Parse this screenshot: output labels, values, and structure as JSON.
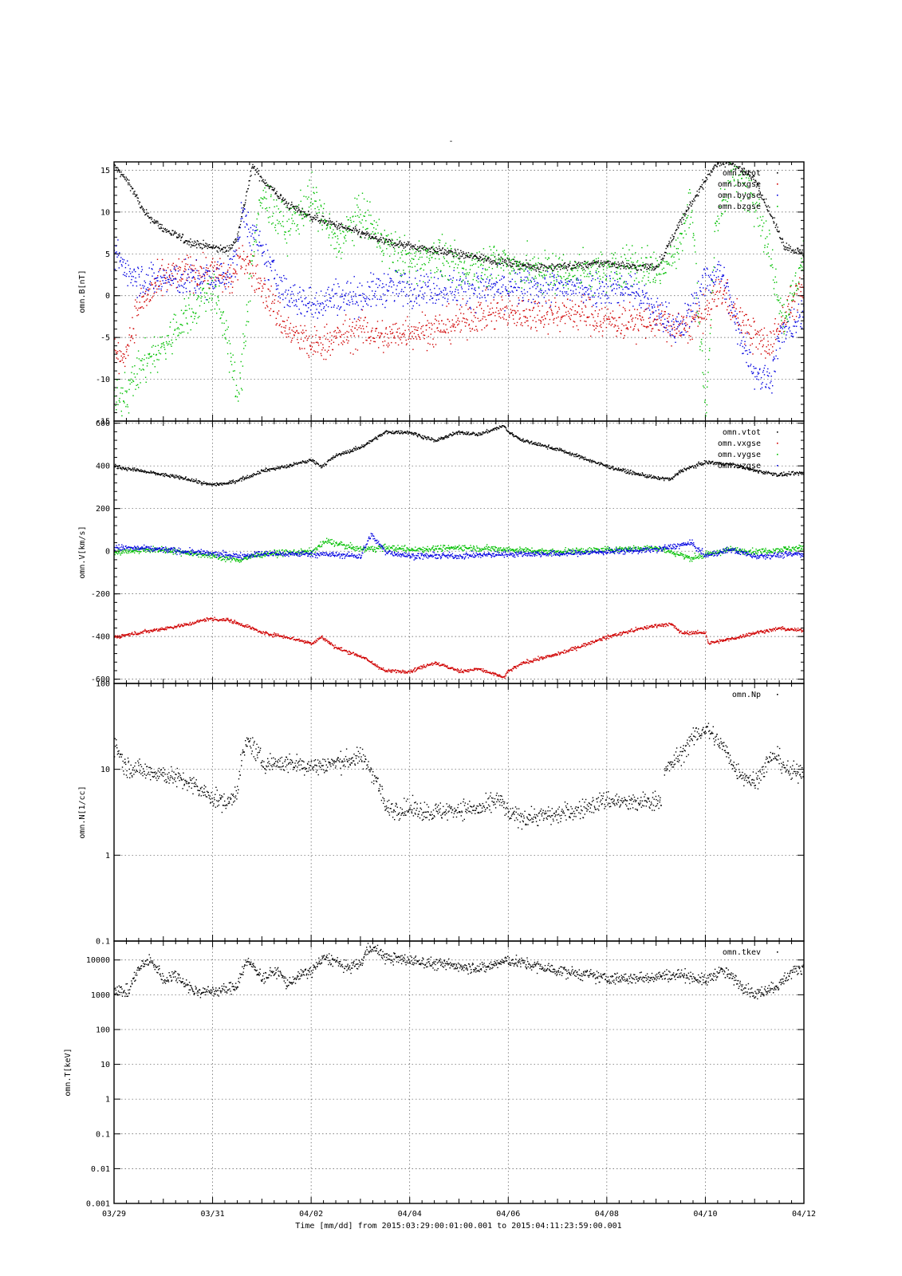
{
  "page": {
    "title": "-"
  },
  "footer": {
    "xlabel": "Time [mm/dd]  from 2015:03:29:00:01:00.001  to  2015:04:11:23:59:00.001"
  },
  "colors": {
    "black": "#000000",
    "red": "#d00000",
    "green": "#00c000",
    "blue": "#0000e0"
  },
  "chart_data": [
    {
      "type": "scatter",
      "ylabel": "omn.B[nT]",
      "yscale": "linear",
      "ylim": [
        -15,
        16
      ],
      "ytick_labels": [
        "15",
        "10",
        "5",
        "0",
        "-5",
        "-10",
        "-15"
      ],
      "yticks": [
        15,
        10,
        5,
        0,
        -5,
        -10,
        -15
      ],
      "grid": true,
      "legend_position": "top-right",
      "x_day_range": [
        0,
        14
      ],
      "x_tick_labels": [
        "03/29",
        "03/31",
        "04/02",
        "04/04",
        "04/06",
        "04/08",
        "04/10",
        "04/12"
      ],
      "x_tick_days": [
        0,
        2,
        4,
        6,
        8,
        10,
        12,
        14
      ],
      "series": [
        {
          "name": "omn.btot",
          "color": "#000000",
          "jitter": 0.35,
          "x": [
            0,
            0.3,
            0.6,
            1.0,
            1.5,
            2.0,
            2.3,
            2.45,
            2.6,
            2.8,
            3.0,
            3.5,
            4.0,
            4.5,
            5.0,
            5.5,
            6.0,
            6.5,
            7.0,
            7.5,
            8.0,
            8.5,
            9.0,
            9.5,
            10.0,
            10.5,
            11.0,
            11.2,
            11.4,
            11.6,
            11.8,
            12.0,
            12.2,
            12.5,
            13.0,
            13.3,
            13.6,
            14.0
          ],
          "y": [
            15.5,
            13.5,
            10,
            8,
            6.5,
            5.8,
            5.5,
            6.5,
            10,
            15.5,
            14,
            11,
            9.5,
            8.5,
            7.5,
            6.5,
            6,
            5.5,
            5,
            4.5,
            4,
            3.5,
            3.5,
            3.7,
            4,
            3.5,
            3.5,
            5.5,
            8,
            10,
            12,
            14,
            15.8,
            16,
            14,
            10,
            6,
            5
          ]
        },
        {
          "name": "omn.bxgse",
          "color": "#d00000",
          "jitter": 1.5,
          "x": [
            0,
            0.15,
            0.5,
            1.0,
            1.5,
            2.0,
            2.4,
            2.6,
            3.0,
            3.5,
            4.0,
            4.5,
            5.0,
            5.5,
            6.0,
            6.5,
            7.0,
            7.5,
            8.0,
            8.5,
            9.0,
            9.5,
            10.0,
            10.5,
            11.0,
            11.5,
            12.0,
            12.3,
            12.6,
            13.0,
            13.3,
            13.6,
            14.0
          ],
          "y": [
            -6,
            -8,
            -1,
            2,
            3,
            3,
            2,
            5,
            1,
            -4,
            -6,
            -5,
            -4,
            -5,
            -4,
            -4,
            -3,
            -2,
            -2,
            -2,
            -2,
            -2,
            -3,
            -3,
            -3,
            -4,
            -2,
            1,
            -2,
            -5,
            -6,
            -2,
            1
          ]
        },
        {
          "name": "omn.bygse",
          "color": "#0000e0",
          "jitter": 1.5,
          "x": [
            0,
            0.3,
            0.6,
            1.0,
            1.5,
            2.0,
            2.4,
            2.6,
            3.0,
            3.5,
            4.0,
            4.5,
            5.0,
            5.5,
            6.0,
            6.5,
            7.0,
            7.5,
            8.0,
            8.5,
            9.0,
            9.5,
            10.0,
            10.5,
            11.0,
            11.5,
            12.0,
            12.3,
            12.6,
            13.0,
            13.3,
            13.5,
            14.0
          ],
          "y": [
            5,
            3,
            2,
            2,
            2,
            2,
            3,
            10,
            5,
            0,
            -1,
            0,
            0,
            1,
            1,
            1,
            1,
            1,
            1,
            1,
            1,
            1,
            1,
            1,
            -2,
            -4,
            2,
            3,
            -3,
            -9,
            -10,
            -5,
            -2
          ]
        },
        {
          "name": "omn.bzgse",
          "color": "#00c000",
          "jitter": 1.8,
          "x": [
            0,
            0.3,
            0.6,
            1.0,
            1.5,
            2.0,
            2.3,
            2.5,
            2.6,
            2.8,
            3.0,
            3.5,
            4.0,
            4.5,
            5.0,
            5.5,
            6.0,
            6.5,
            7.0,
            7.5,
            8.0,
            8.5,
            9.0,
            9.5,
            10.0,
            10.5,
            11.0,
            11.4,
            11.7,
            12.0,
            12.2,
            12.5,
            13.0,
            13.3,
            13.6,
            14.0
          ],
          "y": [
            -13,
            -11,
            -8,
            -6,
            -2,
            1,
            -5,
            -13,
            -8,
            5,
            12,
            8,
            12,
            6,
            10,
            6,
            4,
            5,
            3,
            4,
            4,
            3,
            3,
            3,
            3,
            4,
            3,
            5,
            11,
            -14,
            8,
            15,
            12,
            5,
            -3,
            5
          ]
        }
      ]
    },
    {
      "type": "scatter",
      "ylabel": "omn.V[km/s]",
      "yscale": "linear",
      "ylim": [
        -620,
        610
      ],
      "ytick_labels": [
        "600",
        "400",
        "200",
        "0",
        "-200",
        "-400",
        "-600"
      ],
      "yticks": [
        600,
        400,
        200,
        0,
        -200,
        -400,
        -600
      ],
      "grid": true,
      "legend_position": "top-right",
      "x_day_range": [
        0,
        14
      ],
      "x_tick_labels": [
        "03/29",
        "03/31",
        "04/02",
        "04/04",
        "04/06",
        "04/08",
        "04/10",
        "04/12"
      ],
      "x_tick_days": [
        0,
        2,
        4,
        6,
        8,
        10,
        12,
        14
      ],
      "series": [
        {
          "name": "omn.vtot",
          "color": "#000000",
          "jitter": 6,
          "x": [
            0,
            0.5,
            1.0,
            1.5,
            1.9,
            2.3,
            2.7,
            3.0,
            3.5,
            4.0,
            4.2,
            4.5,
            5.0,
            5.5,
            6.0,
            6.5,
            7.0,
            7.4,
            7.9,
            8.0,
            8.3,
            9.0,
            9.5,
            10.0,
            10.5,
            11.0,
            11.3,
            11.5,
            12.0,
            12.5,
            13.0,
            13.5,
            14.0
          ],
          "y": [
            400,
            380,
            360,
            340,
            315,
            320,
            350,
            380,
            400,
            430,
            400,
            450,
            490,
            560,
            560,
            520,
            560,
            550,
            590,
            560,
            520,
            480,
            440,
            400,
            370,
            345,
            340,
            380,
            420,
            410,
            380,
            360,
            370
          ]
        },
        {
          "name": "omn.vxgse",
          "color": "#d00000",
          "jitter": 6,
          "x": [
            0,
            0.5,
            1.0,
            1.5,
            1.9,
            2.3,
            2.7,
            3.0,
            3.5,
            4.0,
            4.2,
            4.5,
            5.0,
            5.5,
            6.0,
            6.5,
            7.0,
            7.4,
            7.9,
            8.0,
            8.3,
            9.0,
            9.5,
            10.0,
            10.5,
            11.0,
            11.3,
            11.5,
            12.0,
            12.05,
            12.5,
            13.0,
            13.5,
            14.0
          ],
          "y": [
            -400,
            -380,
            -360,
            -340,
            -315,
            -320,
            -350,
            -380,
            -400,
            -430,
            -400,
            -450,
            -490,
            -560,
            -560,
            -520,
            -560,
            -550,
            -590,
            -560,
            -520,
            -480,
            -440,
            -400,
            -370,
            -345,
            -340,
            -380,
            -380,
            -430,
            -410,
            -380,
            -360,
            -370
          ]
        },
        {
          "name": "omn.vygse",
          "color": "#00c000",
          "jitter": 10,
          "x": [
            0,
            1.0,
            2.0,
            2.5,
            3.0,
            4.0,
            4.3,
            5.0,
            5.5,
            6.0,
            7.0,
            8.0,
            9.0,
            10.0,
            11.0,
            11.7,
            12.5,
            13.0,
            14.0
          ],
          "y": [
            0,
            10,
            -20,
            -40,
            -10,
            0,
            50,
            10,
            20,
            10,
            20,
            10,
            0,
            10,
            20,
            -30,
            10,
            0,
            20
          ]
        },
        {
          "name": "omn.vzgse",
          "color": "#0000e0",
          "jitter": 10,
          "x": [
            0,
            1.0,
            2.0,
            2.5,
            3.0,
            4.0,
            5.0,
            5.2,
            5.5,
            6.0,
            7.0,
            8.0,
            9.0,
            10.0,
            11.0,
            11.7,
            12.0,
            12.5,
            13.0,
            14.0
          ],
          "y": [
            20,
            10,
            -10,
            -20,
            -10,
            -10,
            -20,
            80,
            0,
            -20,
            -20,
            -10,
            -10,
            0,
            10,
            40,
            -20,
            10,
            -20,
            -10
          ]
        }
      ]
    },
    {
      "type": "scatter",
      "ylabel": "omn.N[1/cc]",
      "yscale": "log",
      "ylim": [
        0.1,
        100
      ],
      "ytick_labels": [
        "100",
        "10",
        "1",
        "0.1"
      ],
      "yticks": [
        100,
        10,
        1,
        0.1
      ],
      "grid": true,
      "legend_position": "top-right",
      "x_day_range": [
        0,
        14
      ],
      "x_tick_labels": [
        "03/29",
        "03/31",
        "04/02",
        "04/04",
        "04/06",
        "04/08",
        "04/10",
        "04/12"
      ],
      "x_tick_days": [
        0,
        2,
        4,
        6,
        8,
        10,
        12,
        14
      ],
      "series": [
        {
          "name": "omn.Np",
          "color": "#000000",
          "jitter": 0.08,
          "gap_after": 11.1,
          "gap_until": 11.15,
          "x": [
            0,
            0.2,
            0.5,
            1.0,
            1.5,
            1.9,
            2.3,
            2.5,
            2.7,
            3.0,
            3.5,
            4.0,
            4.5,
            5.0,
            5.3,
            5.5,
            6.0,
            6.5,
            7.0,
            7.5,
            7.8,
            8.0,
            8.3,
            9.0,
            9.5,
            10.0,
            10.5,
            11.1,
            11.15,
            11.5,
            11.8,
            12.0,
            12.3,
            12.6,
            13.0,
            13.4,
            13.7,
            14.0
          ],
          "y": [
            20,
            11,
            10,
            9,
            7,
            5,
            4,
            6,
            22,
            12,
            12,
            11,
            12,
            14,
            8,
            3.5,
            3.5,
            3.2,
            3.5,
            3.5,
            4.5,
            3,
            2.8,
            3,
            3.5,
            4.5,
            4,
            4.5,
            9,
            15,
            25,
            30,
            20,
            10,
            7,
            15,
            9,
            10
          ]
        }
      ]
    },
    {
      "type": "scatter",
      "ylabel": "omn.T[keV]",
      "yscale": "log",
      "ylim": [
        0.001,
        35000
      ],
      "ytick_labels": [
        "10000",
        "1000",
        "100",
        "10",
        "1",
        "0.1",
        "0.01",
        "0.001"
      ],
      "yticks": [
        10000,
        1000,
        100,
        10,
        1,
        0.1,
        0.01,
        0.001
      ],
      "grid": true,
      "legend_position": "top-right",
      "x_day_range": [
        0,
        14
      ],
      "x_tick_labels": [
        "03/29",
        "03/31",
        "04/02",
        "04/04",
        "04/06",
        "04/08",
        "04/10",
        "04/12"
      ],
      "x_tick_days": [
        0,
        2,
        4,
        6,
        8,
        10,
        12,
        14
      ],
      "series": [
        {
          "name": "omn.tkev",
          "color": "#000000",
          "jitter": 0.12,
          "x": [
            0,
            0.3,
            0.7,
            1.0,
            1.2,
            1.4,
            1.6,
            2.0,
            2.3,
            2.5,
            2.7,
            3.0,
            3.3,
            3.5,
            4.0,
            4.3,
            4.7,
            5.0,
            5.2,
            5.5,
            6.0,
            6.5,
            7.0,
            7.5,
            8.0,
            8.5,
            9.0,
            9.5,
            10.0,
            10.5,
            11.0,
            11.5,
            12.0,
            12.3,
            12.7,
            13.0,
            13.5,
            14.0
          ],
          "y": [
            1500,
            1200,
            10000,
            2500,
            4000,
            2500,
            1300,
            1300,
            1500,
            2000,
            9000,
            3000,
            5000,
            2000,
            5000,
            12000,
            6000,
            8000,
            25000,
            12000,
            10000,
            8000,
            7000,
            6000,
            10000,
            7000,
            5000,
            4000,
            3000,
            3000,
            3500,
            4000,
            2500,
            5000,
            2000,
            1000,
            2000,
            7000
          ]
        }
      ]
    }
  ]
}
